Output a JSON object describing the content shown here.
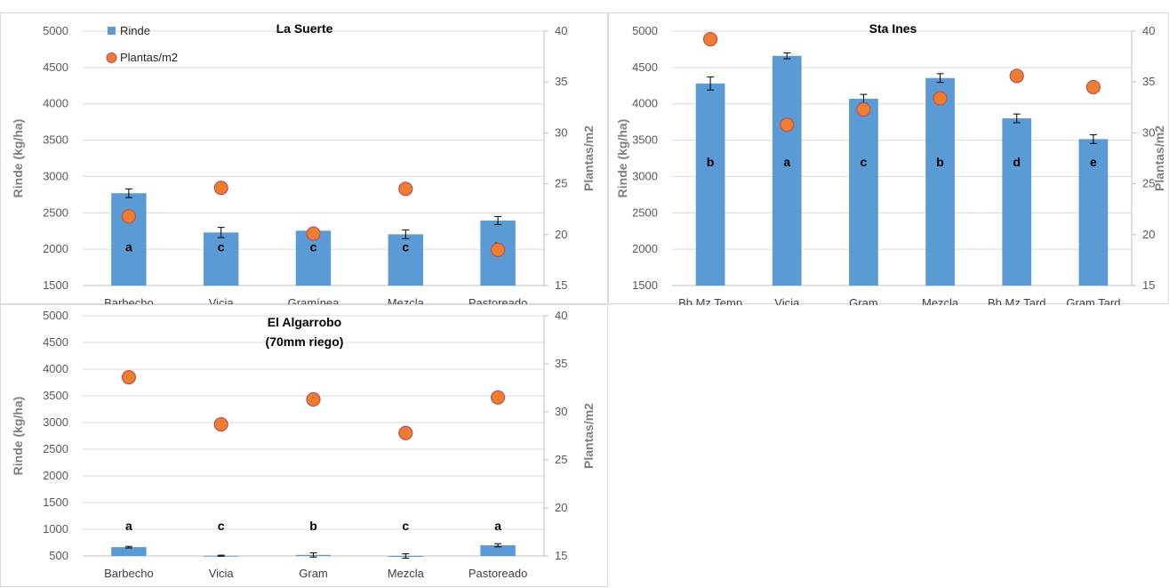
{
  "chart_data": [
    {
      "type": "bar",
      "title": "La Suerte",
      "subtitle": "",
      "ylabel": "Rinde (kg/ha)",
      "y2label": "Plantas/m2",
      "ylim": [
        1500,
        5000
      ],
      "y2lim": [
        15,
        40
      ],
      "yticks": [
        "1500",
        "2000",
        "2500",
        "3000",
        "3500",
        "4000",
        "4500",
        "5000"
      ],
      "y2ticks": [
        "15",
        "20",
        "25",
        "30",
        "35",
        "40"
      ],
      "categories": [
        "Barbecho",
        "Vicia",
        "Gramínea",
        "Mezcla",
        "Pastoreado"
      ],
      "series": [
        {
          "name": "Rinde",
          "kind": "bar",
          "values": [
            2770,
            2230,
            2255,
            2205,
            2395
          ],
          "errors": [
            60,
            70,
            30,
            60,
            55
          ]
        },
        {
          "name": "Plantas/m2",
          "kind": "scatter",
          "axis": "secondary",
          "values": [
            21.8,
            24.6,
            20.1,
            24.5,
            18.5
          ]
        }
      ],
      "letters": [
        "a",
        "c",
        "c",
        "c",
        "b"
      ],
      "legend": {
        "position": "top-left",
        "items": [
          "Rinde",
          "Plantas/m2"
        ]
      },
      "colors": {
        "bar": "#5b9bd5",
        "marker": "#ed7d31",
        "marker_edge": "#c0504d"
      },
      "grid": true
    },
    {
      "type": "bar",
      "title": "Sta Ines",
      "subtitle": "",
      "ylabel": "Rinde (kg/ha)",
      "y2label": "Plantas/m2",
      "ylim": [
        1500,
        5000
      ],
      "y2lim": [
        15,
        40
      ],
      "yticks": [
        "1500",
        "2000",
        "2500",
        "3000",
        "3500",
        "4000",
        "4500",
        "5000"
      ],
      "y2ticks": [
        "15",
        "20",
        "25",
        "30",
        "35",
        "40"
      ],
      "categories": [
        "Bb Mz Temp",
        "Vicia",
        "Gram",
        "Mezcla",
        "Bb Mz Tard",
        "Gram Tard"
      ],
      "series": [
        {
          "name": "Rinde",
          "kind": "bar",
          "values": [
            4280,
            4660,
            4070,
            4355,
            3800,
            3515
          ],
          "errors": [
            90,
            40,
            60,
            60,
            60,
            60
          ]
        },
        {
          "name": "Plantas/m2",
          "kind": "scatter",
          "axis": "secondary",
          "values": [
            39.2,
            30.8,
            32.3,
            33.4,
            35.6,
            34.5
          ]
        }
      ],
      "letters": [
        "b",
        "a",
        "c",
        "b",
        "d",
        "e"
      ],
      "legend": null,
      "colors": {
        "bar": "#5b9bd5",
        "marker": "#ed7d31",
        "marker_edge": "#c0504d"
      },
      "grid": true
    },
    {
      "type": "bar",
      "title": "El Algarrobo",
      "subtitle": "(70mm riego)",
      "ylabel": "Rinde (kg/ha)",
      "y2label": "Plantas/m2",
      "ylim": [
        500,
        5000
      ],
      "y2lim": [
        15,
        40
      ],
      "yticks": [
        "500",
        "1000",
        "1500",
        "2000",
        "2500",
        "3000",
        "3500",
        "4000",
        "4500",
        "5000"
      ],
      "y2ticks": [
        "15",
        "20",
        "25",
        "30",
        "35",
        "40"
      ],
      "categories": [
        "Barbecho",
        "Vicia",
        "Gram",
        "Mezcla",
        "Pastoreado"
      ],
      "series": [
        {
          "name": "Rinde",
          "kind": "bar",
          "values": [
            665,
            505,
            520,
            500,
            700
          ],
          "errors": [
            15,
            10,
            40,
            40,
            30
          ]
        },
        {
          "name": "Plantas/m2",
          "kind": "scatter",
          "axis": "secondary",
          "values": [
            33.6,
            28.7,
            31.3,
            27.8,
            31.5
          ]
        }
      ],
      "letters": [
        "a",
        "c",
        "b",
        "c",
        "a"
      ],
      "legend": null,
      "colors": {
        "bar": "#5b9bd5",
        "marker": "#ed7d31",
        "marker_edge": "#c0504d"
      },
      "grid": true
    }
  ]
}
